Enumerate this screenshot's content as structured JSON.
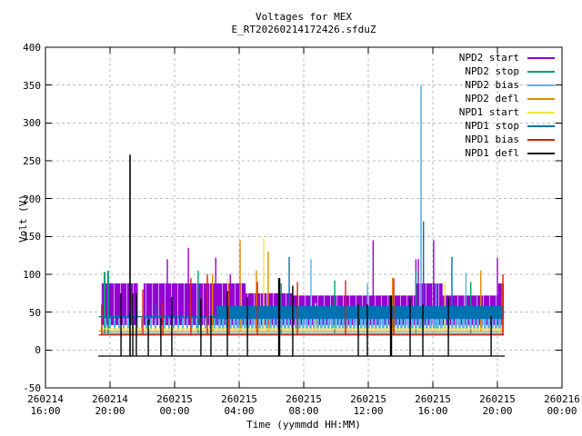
{
  "chart_data": {
    "type": "line",
    "title": "Voltages for MEX",
    "subtitle": "E_RT20260214172426.sfduZ",
    "xlabel": "Time (yymmdd HH:MM)",
    "ylabel": "Volt (V)",
    "ylim": [
      -50,
      400
    ],
    "ytick_step": 50,
    "y_ticks": [
      -50,
      0,
      50,
      100,
      150,
      200,
      250,
      300,
      350,
      400
    ],
    "x_ticks": [
      {
        "date": "260214",
        "time": "16:00",
        "t": 0
      },
      {
        "date": "260214",
        "time": "20:00",
        "t": 4
      },
      {
        "date": "260215",
        "time": "00:00",
        "t": 8
      },
      {
        "date": "260215",
        "time": "04:00",
        "t": 12
      },
      {
        "date": "260215",
        "time": "08:00",
        "t": 16
      },
      {
        "date": "260215",
        "time": "12:00",
        "t": 20
      },
      {
        "date": "260215",
        "time": "16:00",
        "t": 24
      },
      {
        "date": "260215",
        "time": "20:00",
        "t": 28
      },
      {
        "date": "260216",
        "time": "00:00",
        "t": 32
      }
    ],
    "x_hours_range": [
      0,
      32
    ],
    "time_base": "260214 16:00",
    "grid": true,
    "grid_color": "#bbbbbb",
    "border_color": "#000000",
    "background": "#ffffff",
    "legend_position": "top-right-inside",
    "series": [
      {
        "name": "NPD2 start",
        "color": "#9400d3",
        "bands": [
          [
            3.45,
            5.72,
            33,
            88,
            "slits"
          ],
          [
            6.08,
            12.4,
            33,
            88,
            "slits"
          ],
          [
            12.4,
            15.3,
            33,
            75,
            "slits"
          ],
          [
            15.3,
            22.95,
            33,
            72,
            "slits"
          ],
          [
            22.95,
            24.6,
            33,
            88,
            "slits"
          ],
          [
            24.6,
            28.05,
            33,
            72,
            "slits"
          ],
          [
            28.05,
            28.4,
            33,
            88,
            "slits"
          ]
        ],
        "spikes": [
          [
            7.55,
            120
          ],
          [
            8.85,
            135
          ],
          [
            10.55,
            122
          ],
          [
            11.45,
            100
          ],
          [
            20.3,
            145
          ],
          [
            22.95,
            120
          ],
          [
            23.1,
            120
          ],
          [
            24.05,
            145
          ],
          [
            28.0,
            122
          ]
        ]
      },
      {
        "name": "NPD2 stop",
        "color": "#009e73",
        "baseline": {
          "t0": 3.45,
          "t1": 28.4,
          "v": 22
        },
        "spikes": [
          [
            3.66,
            103,
            2
          ],
          [
            3.88,
            105,
            2
          ],
          [
            9.46,
            105
          ],
          [
            14.6,
            88
          ],
          [
            17.92,
            92
          ],
          [
            22.95,
            105
          ],
          [
            26.35,
            90
          ]
        ]
      },
      {
        "name": "NPD2 bias",
        "color": "#56b4e9",
        "bands": [
          [
            3.5,
            10.6,
            27,
            42,
            "stripes-sparse"
          ],
          [
            10.6,
            28.4,
            27,
            44,
            "stripes-dense"
          ]
        ],
        "spikes": [
          [
            16.45,
            120
          ],
          [
            19.95,
            88
          ],
          [
            23.27,
            350,
            1.6
          ],
          [
            24.2,
            88
          ],
          [
            26.05,
            102
          ]
        ]
      },
      {
        "name": "NPD2 defl",
        "color": "#e08a00",
        "baseline": {
          "t0": 3.3,
          "t1": 28.4,
          "v": 25
        },
        "spikes": [
          [
            10.35,
            100
          ],
          [
            12.06,
            145
          ],
          [
            13.07,
            105
          ],
          [
            13.8,
            130
          ],
          [
            21.5,
            95
          ],
          [
            26.97,
            105
          ],
          [
            28.3,
            88
          ]
        ]
      },
      {
        "name": "NPD1 start",
        "color": "#f0e442",
        "baseline": {
          "t0": 3.35,
          "t1": 28.4,
          "v": 28
        },
        "spikes": [
          [
            11.3,
            95
          ],
          [
            13.52,
            148
          ],
          [
            16.73,
            62
          ],
          [
            24.75,
            90
          ]
        ]
      },
      {
        "name": "NPD1 stop",
        "color": "#0072b2",
        "baseline": {
          "t0": 3.3,
          "t1": 10.6,
          "v": 44
        },
        "bands": [
          [
            10.6,
            28.4,
            41,
            58,
            "solid"
          ]
        ],
        "spikes": [
          [
            6.82,
            60
          ],
          [
            15.1,
            123
          ],
          [
            23.42,
            170
          ],
          [
            25.18,
            123
          ]
        ]
      },
      {
        "name": "NPD1 bias",
        "color": "#dd1c10",
        "baseline": {
          "t0": 3.3,
          "t1": 28.4,
          "v": 20
        },
        "spikes": [
          [
            3.49,
            60
          ],
          [
            6.03,
            80
          ],
          [
            7.27,
            62
          ],
          [
            9.01,
            95
          ],
          [
            10.03,
            100
          ],
          [
            11.38,
            88
          ],
          [
            13.13,
            90
          ],
          [
            15.61,
            90
          ],
          [
            18.59,
            92
          ],
          [
            21.58,
            95
          ],
          [
            28.34,
            100
          ]
        ]
      },
      {
        "name": "NPD1 defl",
        "color": "#000000",
        "baseline": {
          "t0": 3.27,
          "t1": 28.45,
          "v": -8
        },
        "spikes": [
          [
            4.68,
            75
          ],
          [
            5.24,
            258,
            1.6
          ],
          [
            5.41,
            75
          ],
          [
            5.63,
            75
          ],
          [
            6.37,
            40
          ],
          [
            7.15,
            42
          ],
          [
            7.83,
            70
          ],
          [
            9.63,
            68
          ],
          [
            10.25,
            45
          ],
          [
            11.27,
            78
          ],
          [
            12.51,
            70
          ],
          [
            14.48,
            95,
            2.4
          ],
          [
            15.32,
            85
          ],
          [
            19.38,
            60
          ],
          [
            19.94,
            60
          ],
          [
            21.41,
            72,
            2.4
          ],
          [
            22.59,
            70
          ],
          [
            23.38,
            60
          ],
          [
            24.96,
            70
          ],
          [
            27.61,
            45
          ]
        ]
      }
    ]
  }
}
